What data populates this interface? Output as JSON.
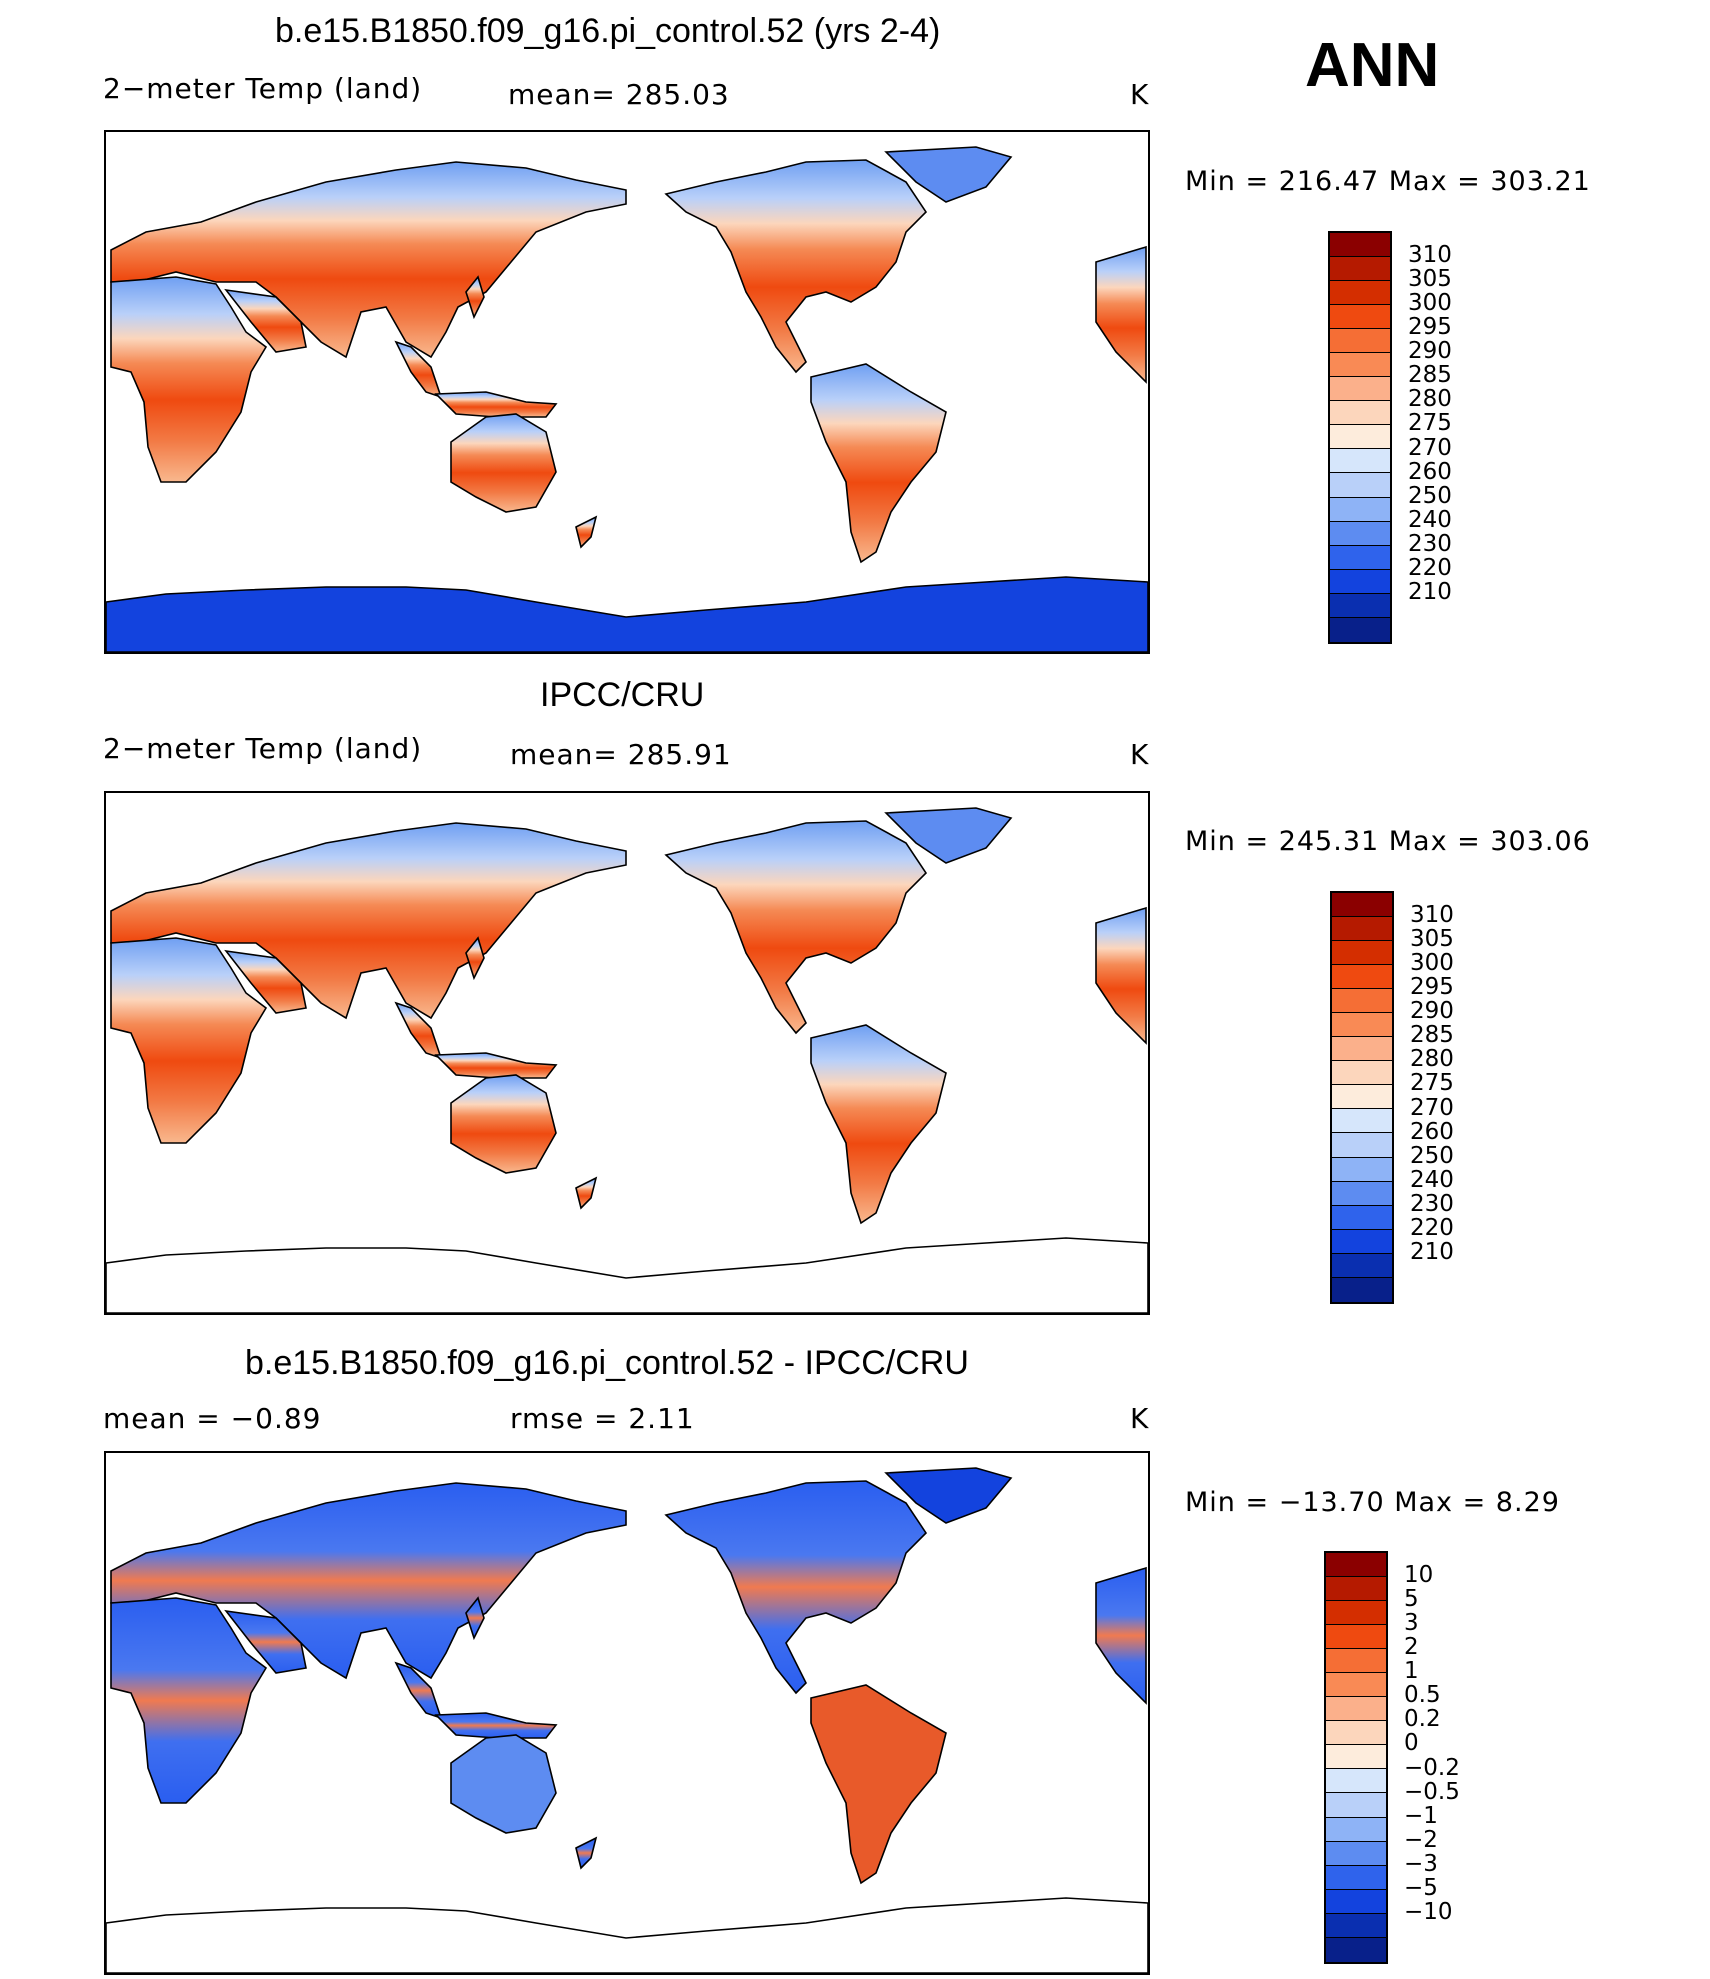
{
  "season": "ANN",
  "panels": [
    {
      "title": "b.e15.B1850.f09_g16.pi_control.52 (yrs 2-4)",
      "left_label": "2−meter Temp (land)",
      "mid_label": "mean=  285.03",
      "units": "K",
      "minmax": "Min  =  216.47  Max  =  303.21",
      "kind": "model",
      "colorbar": {
        "labels": [
          "310",
          "305",
          "300",
          "295",
          "290",
          "285",
          "280",
          "275",
          "270",
          "260",
          "250",
          "240",
          "230",
          "220",
          "210"
        ],
        "colors": [
          "#8b0000",
          "#b51a00",
          "#d42e00",
          "#ef4a10",
          "#f56e35",
          "#f98a55",
          "#fbb08b",
          "#fcd6bc",
          "#fdecdc",
          "#d6e6fb",
          "#b9d0f9",
          "#8eb3f6",
          "#5d8cf1",
          "#2f63ec",
          "#1343de",
          "#0a2fb0",
          "#08208a"
        ]
      }
    },
    {
      "title": "IPCC/CRU",
      "left_label": "2−meter Temp (land)",
      "mid_label": "mean=  285.91",
      "units": "K",
      "minmax": "Min  =  245.31  Max  =  303.06",
      "kind": "obs",
      "colorbar": {
        "labels": [
          "310",
          "305",
          "300",
          "295",
          "290",
          "285",
          "280",
          "275",
          "270",
          "260",
          "250",
          "240",
          "230",
          "220",
          "210"
        ],
        "colors": [
          "#8b0000",
          "#b51a00",
          "#d42e00",
          "#ef4a10",
          "#f56e35",
          "#f98a55",
          "#fbb08b",
          "#fcd6bc",
          "#fdecdc",
          "#d6e6fb",
          "#b9d0f9",
          "#8eb3f6",
          "#5d8cf1",
          "#2f63ec",
          "#1343de",
          "#0a2fb0",
          "#08208a"
        ]
      }
    },
    {
      "title": "b.e15.B1850.f09_g16.pi_control.52 - IPCC/CRU",
      "left_label": "mean  =    −0.89",
      "mid_label": "rmse  =     2.11",
      "units": "K",
      "minmax": "Min  =  −13.70  Max  =      8.29",
      "kind": "diff",
      "colorbar": {
        "labels": [
          "10",
          "5",
          "3",
          "2",
          "1",
          "0.5",
          "0.2",
          "0",
          "−0.2",
          "−0.5",
          "−1",
          "−2",
          "−3",
          "−5",
          "−10"
        ],
        "colors": [
          "#8b0000",
          "#b51a00",
          "#d42e00",
          "#ef4a10",
          "#f56e35",
          "#f98a55",
          "#fbb08b",
          "#fcd6bc",
          "#fdecdc",
          "#d6e6fb",
          "#b9d0f9",
          "#8eb3f6",
          "#5d8cf1",
          "#2f63ec",
          "#1343de",
          "#0a2fb0",
          "#08208a"
        ]
      }
    }
  ]
}
